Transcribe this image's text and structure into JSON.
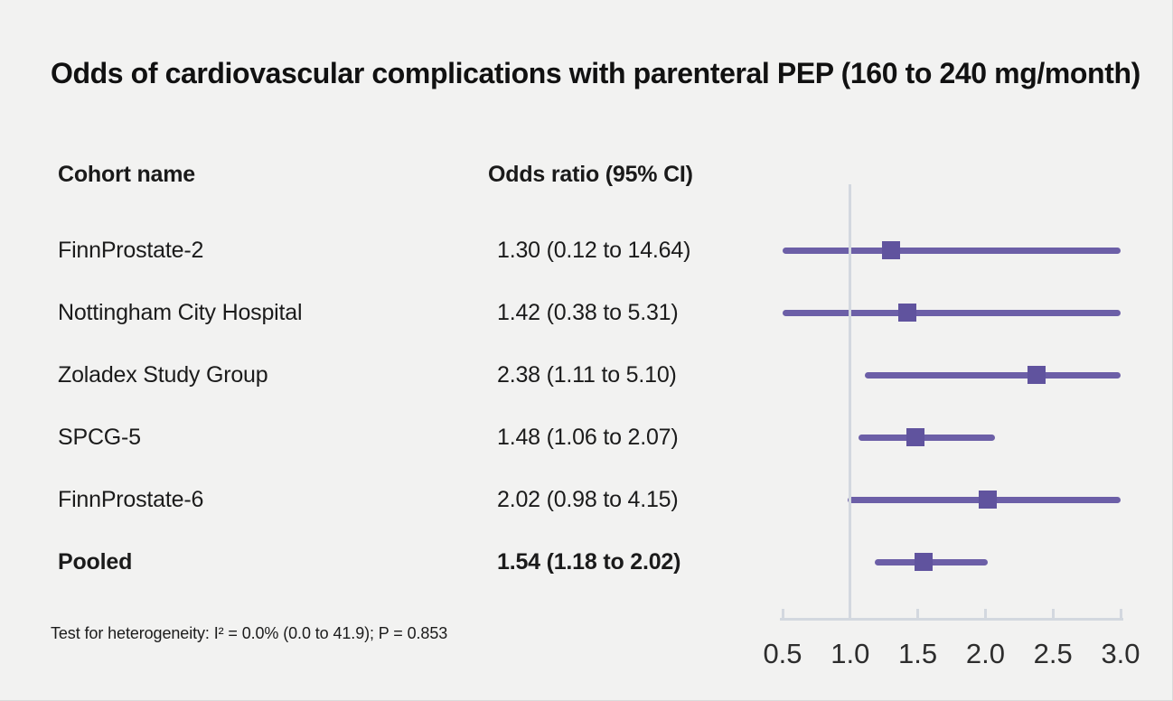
{
  "figure": {
    "title": "Odds of cardiovascular complications with parenteral PEP (160 to 240 mg/month)",
    "footnote": "Test for heterogeneity: I² = 0.0% (0.0 to 41.9); P = 0.853"
  },
  "table": {
    "cohort_header": "Cohort name",
    "or_header": "Odds ratio (95% CI)"
  },
  "colors": {
    "background": "#f2f2f1",
    "text": "#1a1a1a",
    "ci_line": "#6c5fa7",
    "marker": "#60539e",
    "axis": "#d3d8df"
  },
  "chart_data": {
    "type": "forest",
    "x_axis": {
      "scale": "linear",
      "tick_labels": [
        "0.5",
        "1.0",
        "1.5",
        "2.0",
        "2.5",
        "3.0"
      ],
      "tick_values": [
        0.5,
        1.0,
        1.5,
        2.0,
        2.5,
        3.0
      ],
      "clip_range": [
        0.5,
        3.0
      ],
      "reference_line": 1.0
    },
    "studies": [
      {
        "label": "FinnProstate-2",
        "or_text": "1.30 (0.12 to 14.64)",
        "or": 1.3,
        "ci_low": 0.12,
        "ci_high": 14.64,
        "bold": false
      },
      {
        "label": "Nottingham City Hospital",
        "or_text": "1.42 (0.38 to 5.31)",
        "or": 1.42,
        "ci_low": 0.38,
        "ci_high": 5.31,
        "bold": false
      },
      {
        "label": "Zoladex Study Group",
        "or_text": "2.38 (1.11 to 5.10)",
        "or": 2.38,
        "ci_low": 1.11,
        "ci_high": 5.1,
        "bold": false
      },
      {
        "label": "SPCG-5",
        "or_text": "1.48 (1.06 to 2.07)",
        "or": 1.48,
        "ci_low": 1.06,
        "ci_high": 2.07,
        "bold": false
      },
      {
        "label": "FinnProstate-6",
        "or_text": "2.02 (0.98 to 4.15)",
        "or": 2.02,
        "ci_low": 0.98,
        "ci_high": 4.15,
        "bold": false
      },
      {
        "label": "Pooled",
        "or_text": "1.54 (1.18 to 2.02)",
        "or": 1.54,
        "ci_low": 1.18,
        "ci_high": 2.02,
        "bold": true
      }
    ]
  }
}
